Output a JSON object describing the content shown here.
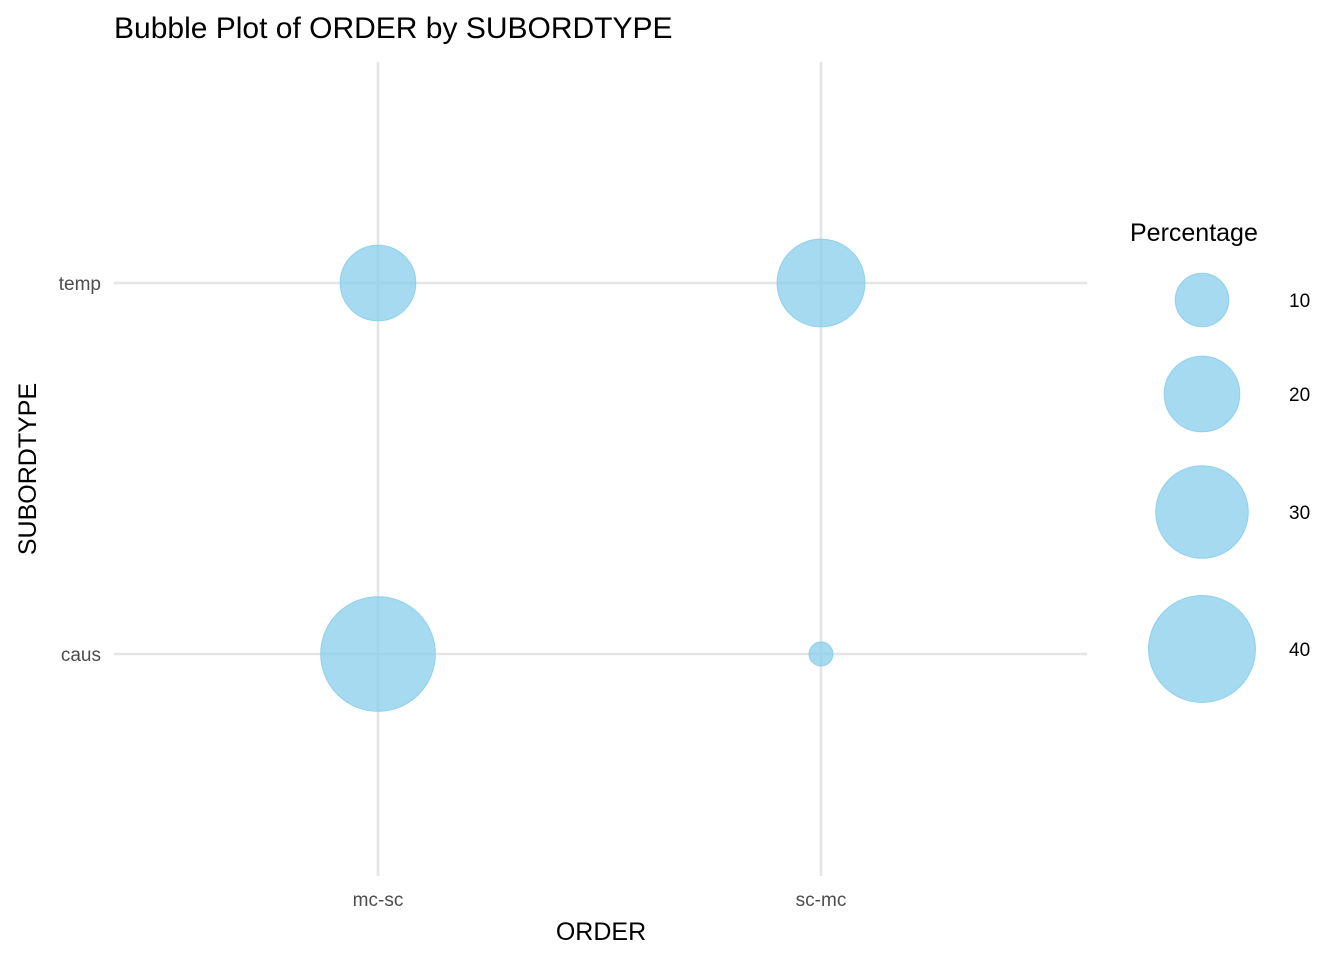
{
  "chart_data": {
    "type": "bubble",
    "title": "Bubble Plot of ORDER by SUBORDTYPE",
    "xlabel": "ORDER",
    "ylabel": "SUBORDTYPE",
    "categories_x": [
      "mc-sc",
      "sc-mc"
    ],
    "categories_y": [
      "caus",
      "temp"
    ],
    "size_variable": "Percentage",
    "points": [
      {
        "x": "mc-sc",
        "y": "temp",
        "value": 20
      },
      {
        "x": "sc-mc",
        "y": "temp",
        "value": 27
      },
      {
        "x": "mc-sc",
        "y": "caus",
        "value": 46
      },
      {
        "x": "sc-mc",
        "y": "caus",
        "value": 2
      }
    ],
    "legend": {
      "title": "Percentage",
      "placement": "right",
      "entries": [
        10,
        20,
        30,
        40
      ]
    },
    "grid": true,
    "bubble_color": "#87CEEB",
    "bubble_opacity": 0.75
  }
}
